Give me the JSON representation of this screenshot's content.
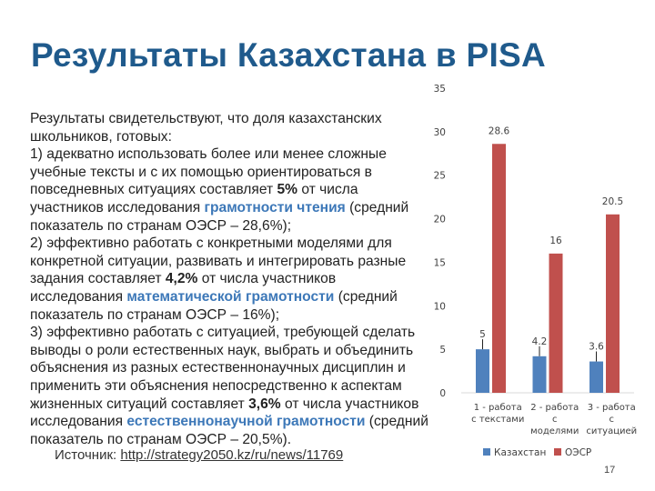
{
  "title": "Результаты Казахстана в PISA",
  "body": {
    "intro": "Результаты свидетельствуют, что доля казахстанских школьников, готовых:",
    "items": [
      {
        "lead": "1)  адекватно использовать более или менее сложные учебные тексты и с их помощью ориентироваться в повседневных ситуациях составляет ",
        "value": "5%",
        "mid": " от числа участников исследования ",
        "skill": "грамотности чтения",
        "avg": " (средний показатель по странам ОЭСР – 28,6%);"
      },
      {
        "lead": "2)  эффективно работать с конкретными моделями для конкретной ситуации, развивать и интегрировать разные задания составляет ",
        "value": "4,2%",
        "mid": " от числа участников исследования ",
        "skill": "математической грамотности",
        "avg": " (средний показатель по странам ОЭСР – 16%);"
      },
      {
        "lead": "3)  эффективно работать с ситуацией, требующей сделать выводы о роли естественных наук, выбрать и объединить объяснения из разных естественнонаучных дисциплин и применить эти объяснения непосредственно к аспектам жизненных ситуаций составляет ",
        "value": "3,6%",
        "mid": " от числа участников исследования ",
        "skill": "естественнонаучной грамотности",
        "avg": " (средний показатель по странам ОЭСР – 20,5%)."
      }
    ]
  },
  "source": {
    "label": "Источник: ",
    "link": "http://strategy2050.kz/ru/news/11769"
  },
  "page_number": "17",
  "colors": {
    "title": "#1f5a8c",
    "highlight": "#3d78b8",
    "kazakhstan": "#4f81bd",
    "oecd": "#c0504d"
  },
  "chart_data": {
    "type": "bar",
    "categories": [
      [
        "1 - работа",
        "с текстами"
      ],
      [
        "2 - работа",
        "с",
        "моделями"
      ],
      [
        "3 - работа",
        "с",
        "ситуацией"
      ]
    ],
    "series": [
      {
        "name": "Казахстан",
        "values": [
          5,
          4.2,
          3.6
        ],
        "labels": [
          "5",
          "4.2",
          "3.6"
        ],
        "color": "#4f81bd"
      },
      {
        "name": "ОЭСР",
        "values": [
          28.6,
          16,
          20.5
        ],
        "labels": [
          "28.6",
          "16",
          "20.5"
        ],
        "color": "#c0504d"
      }
    ],
    "yticks": [
      0,
      5,
      10,
      15,
      20,
      25,
      30,
      35
    ],
    "ylim": [
      0,
      35
    ],
    "grid": false,
    "legend": "bottom",
    "leader_lines": true
  }
}
